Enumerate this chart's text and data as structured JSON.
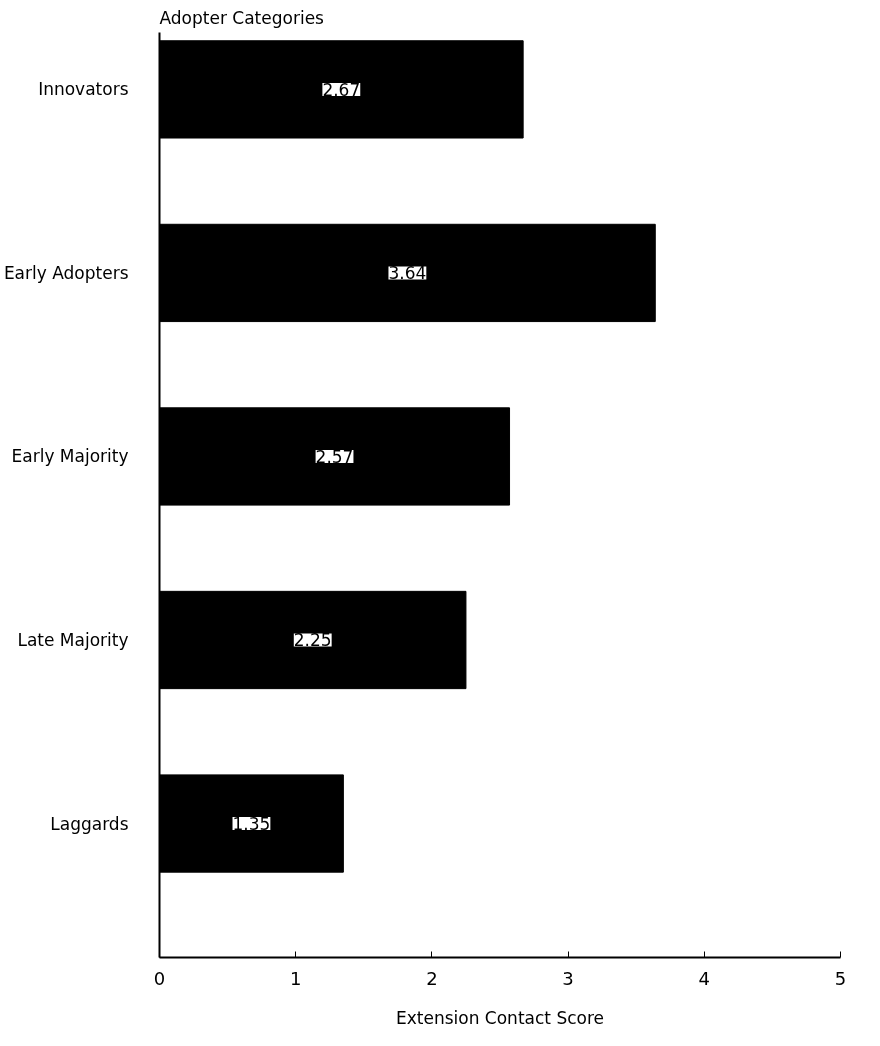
{
  "chart_data": {
    "type": "bar",
    "orientation": "horizontal",
    "ylabel": "Adopter Categories",
    "xlabel": "Extension Contact Score",
    "categories": [
      "Innovators",
      "Early Adopters",
      "Early Majority",
      "Late Majority",
      "Laggards"
    ],
    "values": [
      2.67,
      3.64,
      2.57,
      2.25,
      1.35
    ],
    "color": "#000000",
    "xlim": [
      0,
      5
    ],
    "xticks": [
      0,
      1,
      2,
      3,
      4,
      5
    ],
    "data_labels": true,
    "grid": false
  }
}
